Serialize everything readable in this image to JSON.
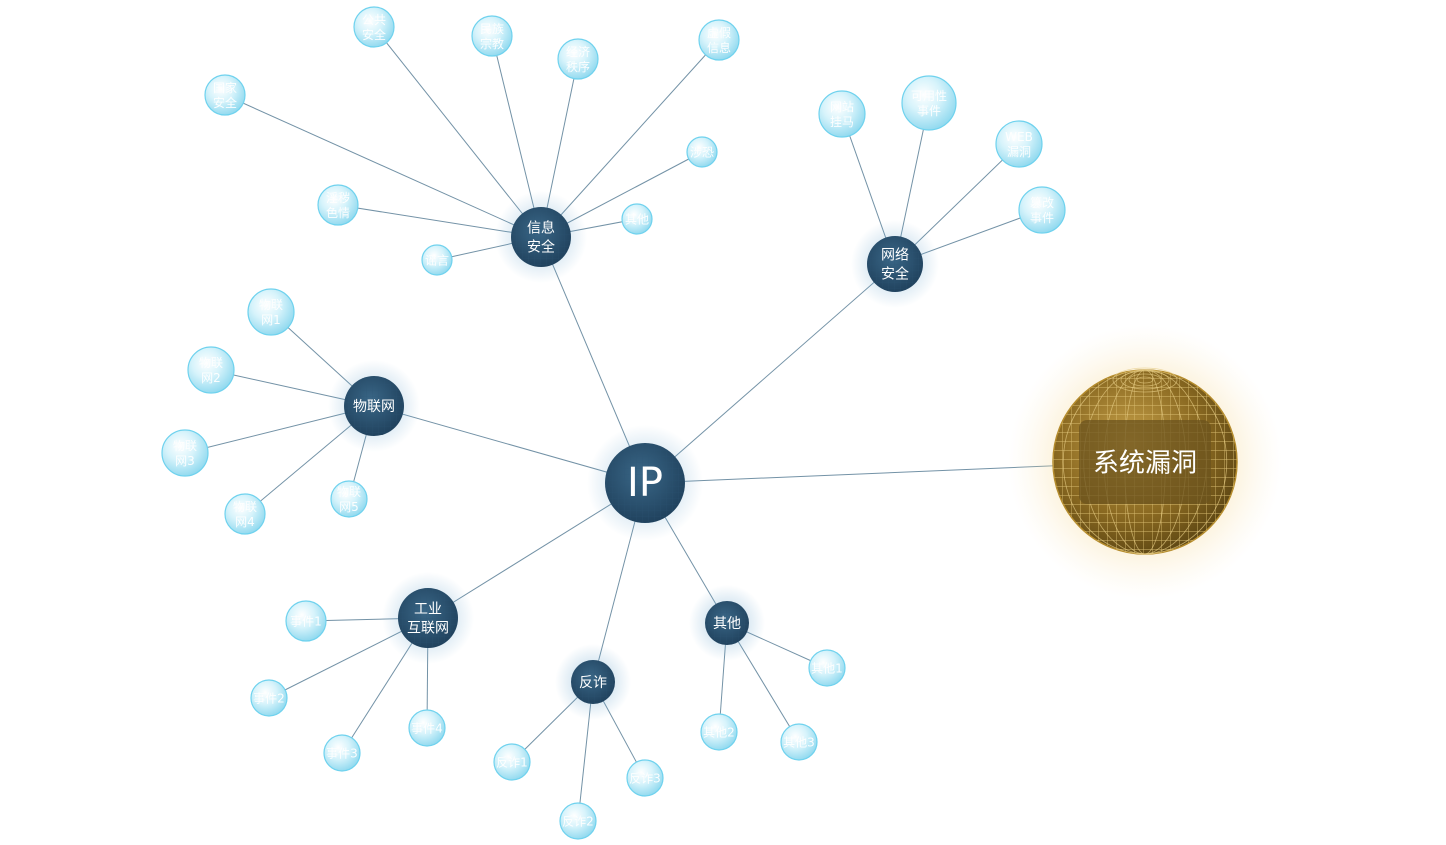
{
  "root": {
    "id": "ip",
    "label": "IP"
  },
  "target": {
    "id": "vuln",
    "label": "系统漏洞"
  },
  "hubs": [
    {
      "id": "info",
      "label": [
        "信息",
        "安全"
      ]
    },
    {
      "id": "net",
      "label": [
        "网络",
        "安全"
      ]
    },
    {
      "id": "iot",
      "label": [
        "物联网"
      ]
    },
    {
      "id": "indus",
      "label": [
        "工业",
        "互联网"
      ]
    },
    {
      "id": "fraud",
      "label": [
        "反诈"
      ]
    },
    {
      "id": "other",
      "label": [
        "其他"
      ]
    }
  ],
  "leaves": [
    {
      "hub": "info",
      "label": [
        "国家",
        "安全"
      ]
    },
    {
      "hub": "info",
      "label": [
        "公共",
        "安全"
      ]
    },
    {
      "hub": "info",
      "label": [
        "民族",
        "宗教"
      ]
    },
    {
      "hub": "info",
      "label": [
        "经济",
        "秩序"
      ]
    },
    {
      "hub": "info",
      "label": [
        "虚假",
        "信息"
      ]
    },
    {
      "hub": "info",
      "label": [
        "涉恐"
      ]
    },
    {
      "hub": "info",
      "label": [
        "其他"
      ]
    },
    {
      "hub": "info",
      "label": [
        "淫秽",
        "色情"
      ]
    },
    {
      "hub": "info",
      "label": [
        "谣言"
      ]
    },
    {
      "hub": "net",
      "label": [
        "网站",
        "挂马"
      ]
    },
    {
      "hub": "net",
      "label": [
        "可用性",
        "事件"
      ]
    },
    {
      "hub": "net",
      "label": [
        "WEB",
        "漏洞"
      ]
    },
    {
      "hub": "net",
      "label": [
        "篡改",
        "事件"
      ]
    },
    {
      "hub": "iot",
      "label": [
        "物联",
        "网1"
      ]
    },
    {
      "hub": "iot",
      "label": [
        "物联",
        "网2"
      ]
    },
    {
      "hub": "iot",
      "label": [
        "物联",
        "网3"
      ]
    },
    {
      "hub": "iot",
      "label": [
        "物联",
        "网4"
      ]
    },
    {
      "hub": "iot",
      "label": [
        "物联",
        "网5"
      ]
    },
    {
      "hub": "indus",
      "label": [
        "事件1"
      ]
    },
    {
      "hub": "indus",
      "label": [
        "事件2"
      ]
    },
    {
      "hub": "indus",
      "label": [
        "事件3"
      ]
    },
    {
      "hub": "indus",
      "label": [
        "事件4"
      ]
    },
    {
      "hub": "fraud",
      "label": [
        "反诈1"
      ]
    },
    {
      "hub": "fraud",
      "label": [
        "反诈2"
      ]
    },
    {
      "hub": "fraud",
      "label": [
        "反诈3"
      ]
    },
    {
      "hub": "other",
      "label": [
        "其他1"
      ]
    },
    {
      "hub": "other",
      "label": [
        "其他2"
      ]
    },
    {
      "hub": "other",
      "label": [
        "其他3"
      ]
    }
  ]
}
